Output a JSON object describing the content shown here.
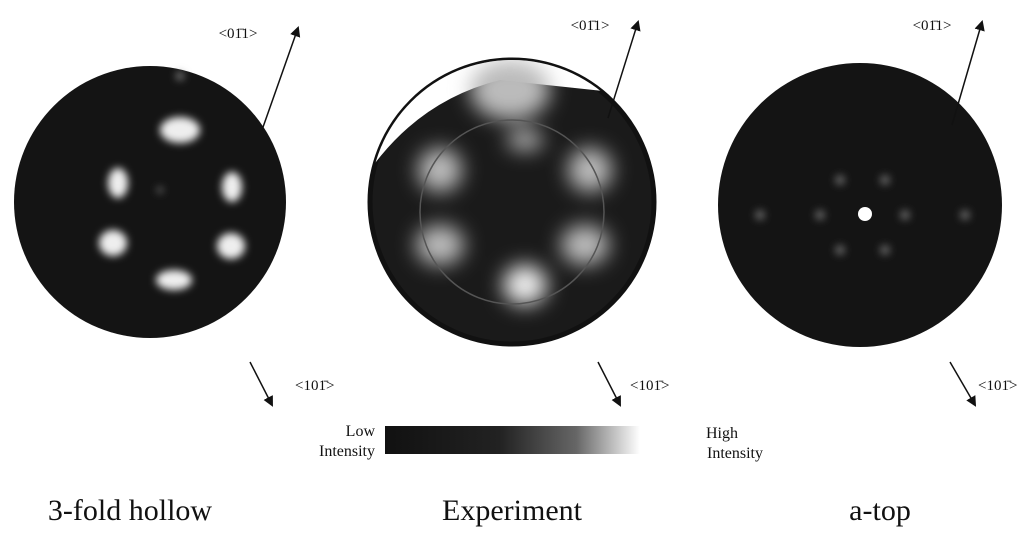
{
  "panels": [
    {
      "caption": "3-fold hollow",
      "top_direction": "<01̄1>",
      "bottom_direction": "<101̄>"
    },
    {
      "caption": "Experiment",
      "top_direction": "<01̄1>",
      "bottom_direction": "<101̄>"
    },
    {
      "caption": "a-top",
      "top_direction": "<01̄1>",
      "bottom_direction": "<101̄>"
    }
  ],
  "colorbar": {
    "low_label": [
      "Low",
      "Intensity"
    ],
    "high_label": [
      "High",
      "Intensity"
    ]
  }
}
